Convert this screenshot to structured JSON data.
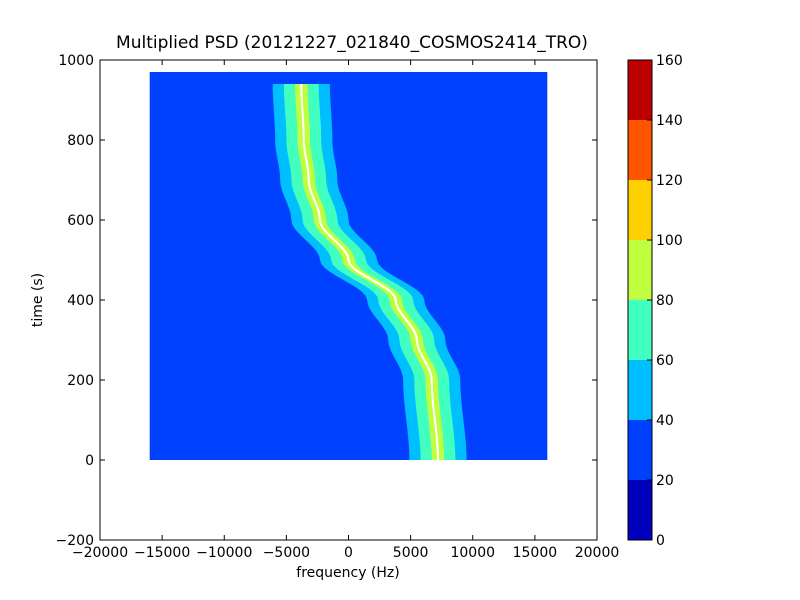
{
  "chart_data": {
    "type": "heatmap",
    "title": "Multiplied PSD (20121227_021840_COSMOS2414_TRO)",
    "xlabel": "frequency (Hz)",
    "ylabel": "time (s)",
    "xlim": [
      -20000,
      20000
    ],
    "ylim": [
      -200,
      1000
    ],
    "x_ticks": [
      -20000,
      -15000,
      -10000,
      -5000,
      0,
      5000,
      10000,
      15000,
      20000
    ],
    "x_tick_labels": [
      "−20000",
      "−15000",
      "−10000",
      "−5000",
      "0",
      "5000",
      "10000",
      "15000",
      "20000"
    ],
    "y_ticks": [
      -200,
      0,
      200,
      400,
      600,
      800,
      1000
    ],
    "y_tick_labels": [
      "−200",
      "0",
      "200",
      "400",
      "600",
      "800",
      "1000"
    ],
    "data_extent": {
      "x": [
        -16000,
        16000
      ],
      "y": [
        0,
        970
      ]
    },
    "colorbar": {
      "range": [
        0,
        160
      ],
      "ticks": [
        0,
        20,
        40,
        60,
        80,
        100,
        120,
        140,
        160
      ],
      "tick_labels": [
        "0",
        "20",
        "40",
        "60",
        "80",
        "100",
        "120",
        "140",
        "160"
      ],
      "colors": [
        "#0000bf",
        "#0040ff",
        "#00bfff",
        "#40ffbf",
        "#bfff40",
        "#ffd000",
        "#ff5500",
        "#bf0000"
      ]
    },
    "background_level": 22,
    "doppler_curve": {
      "description_points": [
        {
          "t": 0,
          "f": 7200
        },
        {
          "t": 200,
          "f": 6700
        },
        {
          "t": 300,
          "f": 5500
        },
        {
          "t": 400,
          "f": 3800
        },
        {
          "t": 500,
          "f": 0
        },
        {
          "t": 600,
          "f": -2300
        },
        {
          "t": 700,
          "f": -3200
        },
        {
          "t": 800,
          "f": -3600
        },
        {
          "t": 940,
          "f": -3800
        }
      ],
      "band_levels": [
        35,
        55,
        75,
        95
      ]
    },
    "grid": false
  }
}
